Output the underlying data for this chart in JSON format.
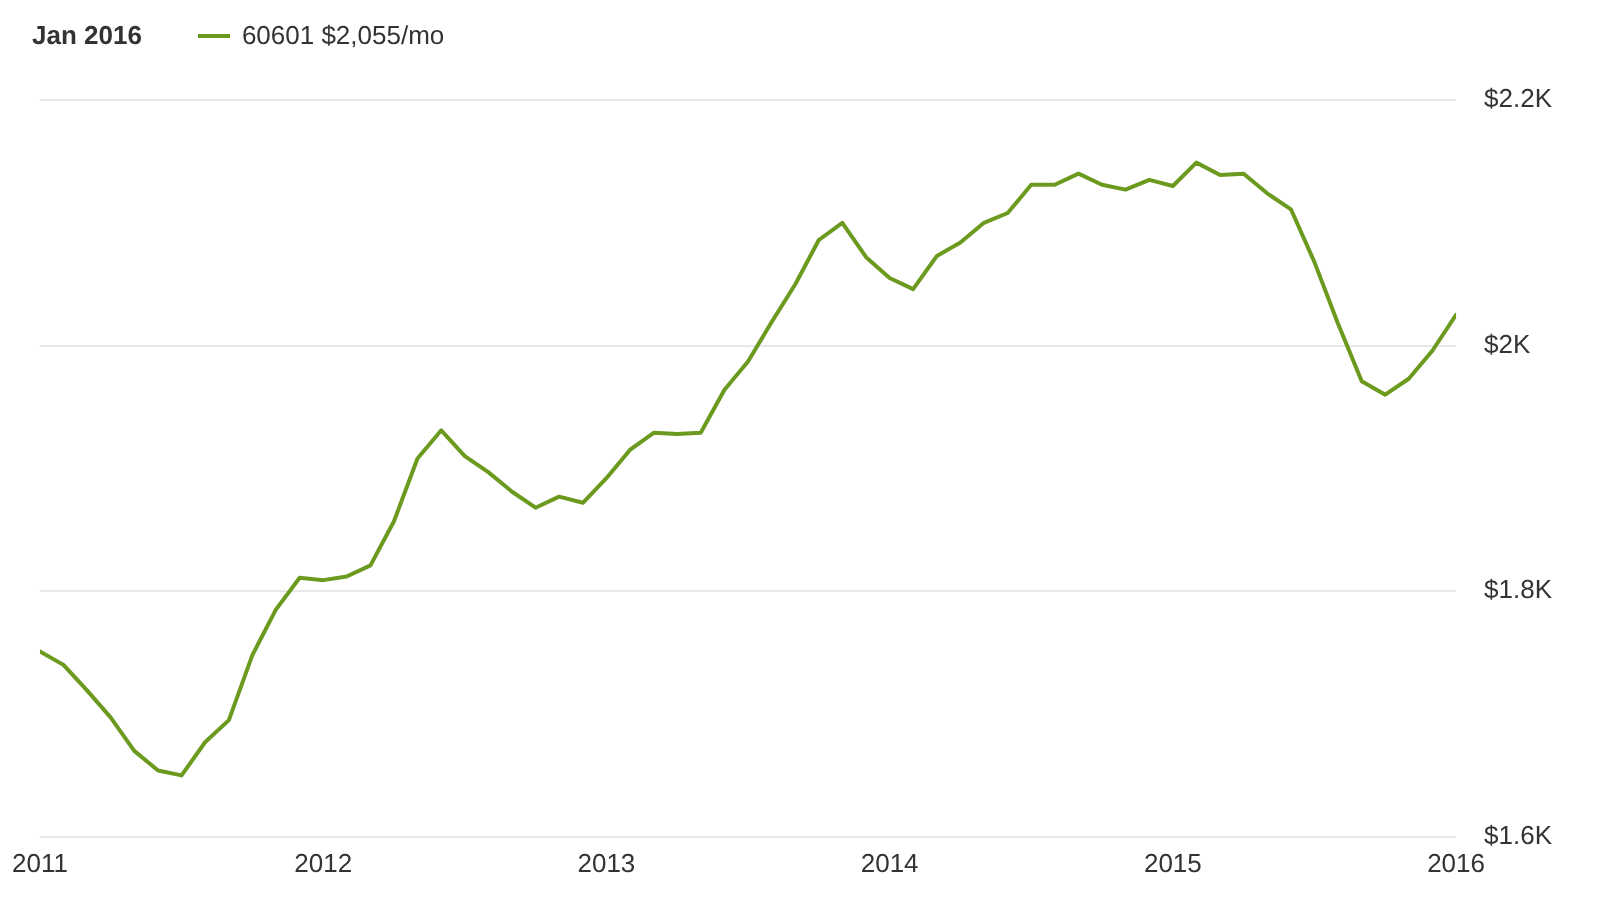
{
  "chart_data": {
    "type": "line",
    "legend_title": "Jan 2016",
    "legend": "top left",
    "grid": "y",
    "marker": "none",
    "line_style": "solid",
    "x": [
      2011,
      2011.083,
      2011.167,
      2011.25,
      2011.333,
      2011.417,
      2011.5,
      2011.583,
      2011.667,
      2011.75,
      2011.833,
      2011.917,
      2012,
      2012.083,
      2012.167,
      2012.25,
      2012.333,
      2012.417,
      2012.5,
      2012.583,
      2012.667,
      2012.75,
      2012.833,
      2012.917,
      2013,
      2013.083,
      2013.167,
      2013.25,
      2013.333,
      2013.417,
      2013.5,
      2013.583,
      2013.667,
      2013.75,
      2013.833,
      2013.917,
      2014,
      2014.083,
      2014.167,
      2014.25,
      2014.333,
      2014.417,
      2014.5,
      2014.583,
      2014.667,
      2014.75,
      2014.833,
      2014.917,
      2015,
      2015.083,
      2015.167,
      2015.25,
      2015.333,
      2015.417,
      2015.5,
      2015.583,
      2015.667,
      2015.75,
      2015.833,
      2015.917,
      2016
    ],
    "series": [
      {
        "name": "60601 $2,055/mo",
        "color": "#6b9a1f",
        "values": [
          1751,
          1740,
          1719,
          1697,
          1670,
          1654,
          1650,
          1677,
          1695,
          1748,
          1785,
          1811,
          1809,
          1812,
          1821,
          1857,
          1908,
          1931,
          1910,
          1897,
          1881,
          1868,
          1877,
          1872,
          1892,
          1915,
          1929,
          1928,
          1929,
          1964,
          1987,
          2019,
          2050,
          2086,
          2100,
          2072,
          2055,
          2046,
          2073,
          2084,
          2100,
          2108,
          2131,
          2131,
          2140,
          2131,
          2127,
          2135,
          2130,
          2149,
          2139,
          2140,
          2124,
          2111,
          2068,
          2018,
          1971,
          1960,
          1973,
          1996,
          2025
        ]
      }
    ],
    "xlim": [
      2011,
      2016
    ],
    "xticks": [
      2011,
      2012,
      2013,
      2014,
      2015,
      2016
    ],
    "ylim": [
      1600,
      2200
    ],
    "yticks": [
      {
        "value": 1600,
        "label": "$1.6K"
      },
      {
        "value": 1800,
        "label": "$1.8K"
      },
      {
        "value": 2000,
        "label": "$2K"
      },
      {
        "value": 2200,
        "label": "$2.2K"
      }
    ]
  }
}
